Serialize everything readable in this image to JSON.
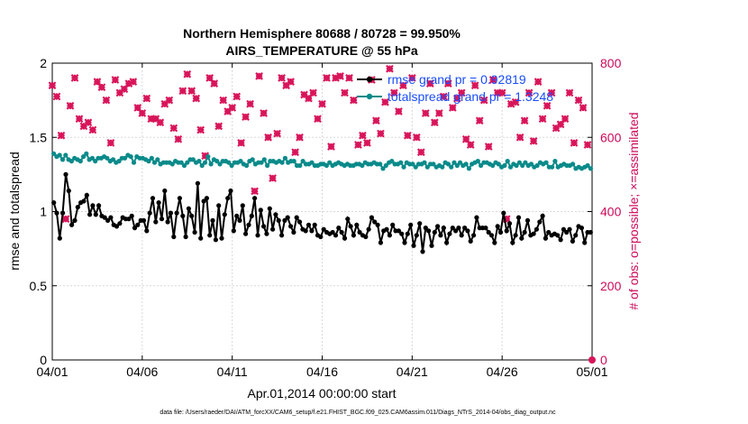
{
  "chart_data": {
    "type": "line",
    "title": "Northern Hemisphere 80688 / 80728 = 99.950%",
    "subtitle": "AIRS_TEMPERATURE @ 55 hPa",
    "xlabel": "Apr.01,2014 00:00:00 start",
    "ylabel": "rmse and totalspread",
    "y2label": "# of obs: o=possible; ×=assimilated",
    "footer": "data file: /Users/raeder/DAI/ATM_forcXX/CAM6_setup/f.e21.FHIST_BGC.f09_025.CAM6assim.011/Diags_NTrS_2014-04/obs_diag_output.nc",
    "x_ticks": [
      "04/01",
      "04/06",
      "04/11",
      "04/16",
      "04/21",
      "04/26",
      "05/01"
    ],
    "x_range_days": [
      0,
      30
    ],
    "ylim": [
      0,
      2
    ],
    "y_ticks": [
      "0",
      "0.5",
      "1",
      "1.5",
      "2"
    ],
    "y2lim": [
      0,
      800
    ],
    "y2_ticks": [
      "0",
      "200",
      "400",
      "600",
      "800"
    ],
    "grid": true,
    "legend_position": "top-right",
    "colors": {
      "rmse": "#000000",
      "spread": "#0a8a8a",
      "obs": "#d8155a",
      "legend_text": "#1a4dff",
      "right_axis": "#cc0a5a"
    },
    "series": [
      {
        "name": "rmse grand pr = 0.92819",
        "values": [
          1.06,
          0.99,
          0.82,
          0.99,
          1.25,
          1.14,
          0.91,
          0.94,
          1.03,
          1.06,
          1.07,
          1.11,
          0.98,
          1.04,
          0.98,
          1.04,
          0.97,
          0.96,
          0.94,
          0.96,
          0.91,
          0.9,
          0.92,
          0.96,
          0.95,
          0.95,
          0.97,
          0.89,
          0.91,
          0.94,
          0.94,
          0.87,
          0.99,
          1.09,
          0.93,
          1.06,
          0.95,
          1.14,
          0.93,
          0.99,
          0.83,
          0.99,
          1.09,
          0.97,
          0.83,
          1.02,
          0.97,
          0.86,
          1.19,
          0.82,
          1.07,
          1.09,
          0.84,
          0.94,
          0.81,
          1.04,
          0.82,
          0.98,
          1.09,
          1.14,
          0.87,
          0.97,
          0.94,
          1.04,
          0.85,
          0.91,
          0.97,
          1.09,
          0.84,
          1.01,
          0.9,
          0.85,
          1.02,
          0.88,
          0.98,
          0.94,
          0.84,
          0.94,
          0.96,
          0.9,
          0.86,
          0.96,
          0.93,
          0.88,
          0.87,
          0.91,
          0.87,
          0.91,
          0.84,
          0.83,
          0.88,
          0.86,
          0.85,
          0.86,
          0.84,
          0.89,
          0.86,
          0.82,
          0.95,
          0.9,
          0.84,
          0.91,
          0.86,
          0.84,
          0.83,
          0.88,
          0.96,
          0.93,
          0.91,
          0.79,
          0.87,
          0.88,
          0.84,
          0.91,
          0.87,
          0.87,
          0.85,
          0.79,
          0.85,
          0.91,
          0.77,
          0.84,
          0.92,
          0.73,
          0.89,
          0.87,
          0.77,
          0.86,
          0.9,
          0.84,
          0.89,
          0.79,
          0.85,
          0.89,
          0.87,
          0.89,
          0.84,
          0.89,
          0.87,
          0.8,
          0.84,
          0.96,
          0.89,
          0.89,
          0.89,
          0.86,
          0.84,
          0.79,
          0.9,
          0.86,
          0.99,
          0.87,
          0.92,
          0.79,
          0.84,
          0.96,
          0.82,
          0.86,
          0.94,
          0.84,
          0.85,
          0.88,
          0.93,
          0.97,
          0.82,
          0.86,
          0.84,
          0.85,
          0.84,
          0.81,
          0.88,
          0.86,
          0.88,
          0.8,
          0.84,
          0.9,
          0.89,
          0.79,
          0.86,
          0.86
        ]
      },
      {
        "name": "totalspread grand pr = 1.3248",
        "values": [
          1.39,
          1.37,
          1.38,
          1.35,
          1.38,
          1.35,
          1.34,
          1.36,
          1.35,
          1.34,
          1.37,
          1.39,
          1.35,
          1.36,
          1.34,
          1.36,
          1.36,
          1.37,
          1.36,
          1.34,
          1.35,
          1.33,
          1.34,
          1.36,
          1.36,
          1.38,
          1.37,
          1.33,
          1.37,
          1.36,
          1.36,
          1.35,
          1.34,
          1.36,
          1.33,
          1.35,
          1.32,
          1.33,
          1.33,
          1.33,
          1.32,
          1.34,
          1.33,
          1.33,
          1.31,
          1.33,
          1.35,
          1.35,
          1.33,
          1.34,
          1.31,
          1.33,
          1.37,
          1.32,
          1.35,
          1.34,
          1.32,
          1.34,
          1.34,
          1.33,
          1.31,
          1.33,
          1.33,
          1.34,
          1.32,
          1.31,
          1.34,
          1.35,
          1.32,
          1.33,
          1.33,
          1.35,
          1.31,
          1.34,
          1.34,
          1.33,
          1.34,
          1.33,
          1.36,
          1.33,
          1.34,
          1.34,
          1.31,
          1.31,
          1.34,
          1.32,
          1.32,
          1.33,
          1.31,
          1.31,
          1.32,
          1.32,
          1.31,
          1.33,
          1.31,
          1.32,
          1.33,
          1.32,
          1.31,
          1.32,
          1.31,
          1.31,
          1.32,
          1.32,
          1.31,
          1.33,
          1.32,
          1.32,
          1.33,
          1.32,
          1.32,
          1.29,
          1.31,
          1.33,
          1.34,
          1.32,
          1.32,
          1.33,
          1.3,
          1.33,
          1.32,
          1.32,
          1.3,
          1.32,
          1.32,
          1.33,
          1.3,
          1.32,
          1.32,
          1.3,
          1.31,
          1.3,
          1.33,
          1.32,
          1.3,
          1.33,
          1.31,
          1.33,
          1.31,
          1.32,
          1.29,
          1.32,
          1.33,
          1.34,
          1.31,
          1.33,
          1.33,
          1.32,
          1.31,
          1.33,
          1.32,
          1.3,
          1.31,
          1.34,
          1.3,
          1.32,
          1.31,
          1.33,
          1.31,
          1.33,
          1.31,
          1.32,
          1.3,
          1.31,
          1.33,
          1.32,
          1.33,
          1.3,
          1.3,
          1.34,
          1.3,
          1.31,
          1.32,
          1.31,
          1.31,
          1.32,
          1.29,
          1.3,
          1.29,
          1.3,
          1.31,
          1.29
        ]
      }
    ],
    "obs_possible": {
      "name": "obs possible",
      "x_days": [
        30
      ],
      "values": [
        0
      ]
    },
    "obs_assimilated": {
      "name": "obs assimilated",
      "x_days": [
        0.0,
        0.25,
        0.5,
        0.75,
        1.0,
        1.25,
        1.5,
        1.75,
        2.0,
        2.25,
        2.5,
        2.75,
        3.0,
        3.25,
        3.5,
        3.75,
        4.0,
        4.25,
        4.5,
        4.75,
        5.0,
        5.25,
        5.5,
        5.75,
        6.0,
        6.25,
        6.5,
        6.75,
        7.0,
        7.25,
        7.5,
        7.75,
        8.0,
        8.25,
        8.5,
        8.75,
        9.0,
        9.25,
        9.5,
        9.75,
        10.0,
        10.25,
        10.5,
        10.75,
        11.0,
        11.25,
        11.5,
        11.75,
        12.0,
        12.25,
        12.5,
        12.75,
        13.0,
        13.25,
        13.5,
        13.75,
        14.0,
        14.25,
        14.5,
        14.75,
        15.0,
        15.25,
        15.5,
        15.75,
        16.0,
        16.25,
        16.5,
        16.75,
        17.0,
        17.25,
        17.5,
        17.75,
        18.0,
        18.25,
        18.5,
        18.75,
        19.0,
        19.25,
        19.5,
        19.75,
        20.0,
        20.25,
        20.5,
        20.75,
        21.0,
        21.25,
        21.5,
        21.75,
        22.0,
        22.25,
        22.5,
        22.75,
        23.0,
        23.25,
        23.5,
        23.75,
        24.0,
        24.25,
        24.5,
        24.75,
        25.0,
        25.25,
        25.5,
        25.75,
        26.0,
        26.25,
        26.5,
        26.75,
        27.0,
        27.25,
        27.5,
        27.75,
        28.0,
        28.25,
        28.5,
        28.75,
        29.0,
        29.25,
        29.5,
        29.75
      ],
      "values": [
        740,
        710,
        605,
        380,
        685,
        760,
        650,
        630,
        640,
        620,
        750,
        735,
        700,
        585,
        755,
        720,
        730,
        745,
        750,
        680,
        665,
        705,
        650,
        650,
        640,
        690,
        700,
        625,
        595,
        725,
        770,
        725,
        705,
        620,
        550,
        760,
        745,
        630,
        700,
        670,
        680,
        710,
        585,
        655,
        690,
        455,
        765,
        665,
        600,
        490,
        610,
        760,
        740,
        750,
        560,
        600,
        715,
        705,
        720,
        650,
        690,
        760,
        575,
        760,
        765,
        720,
        760,
        700,
        580,
        605,
        585,
        755,
        645,
        610,
        695,
        785,
        720,
        670,
        740,
        605,
        760,
        600,
        560,
        665,
        745,
        640,
        665,
        710,
        745,
        680,
        705,
        720,
        595,
        580,
        740,
        645,
        700,
        575,
        755,
        720,
        720,
        380,
        690,
        695,
        600,
        645,
        720,
        590,
        750,
        650,
        685,
        720,
        625,
        635,
        650,
        720,
        585,
        700,
        680,
        580
      ]
    }
  }
}
